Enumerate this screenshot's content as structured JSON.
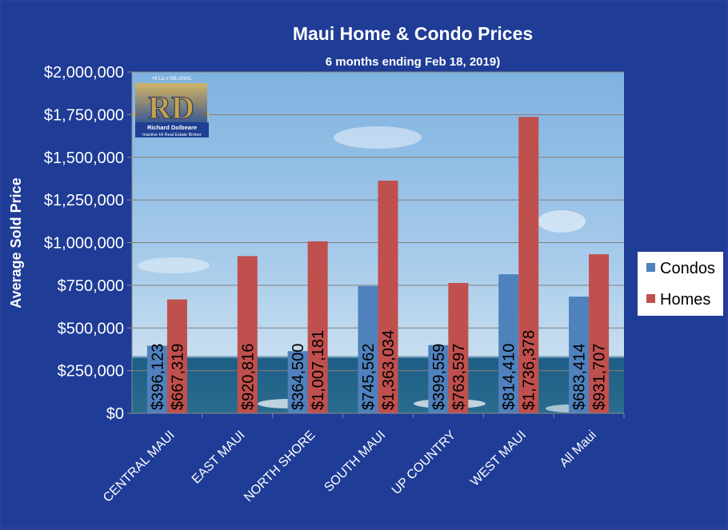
{
  "chart_data": {
    "type": "bar",
    "title": "Maui Home & Condo Prices",
    "subtitle": "6 months  ending Feb 18, 2019)",
    "xlabel": "",
    "ylabel": "Average Sold Price",
    "ylim": [
      0,
      2000000
    ],
    "yticks": [
      "$0",
      "$250,000",
      "$500,000",
      "$750,000",
      "$1,000,000",
      "$1,250,000",
      "$1,500,000",
      "$1,750,000",
      "$2,000,000"
    ],
    "grid": true,
    "legend_position": "right",
    "categories": [
      "CENTRAL MAUI",
      "EAST MAUI",
      "NORTH SHORE",
      "SOUTH MAUI",
      "UP COUNTRY",
      "WEST MAUI",
      "All Maui"
    ],
    "series": [
      {
        "name": "Condos",
        "color": "#4f81bd",
        "values": [
          396123,
          null,
          364500,
          745562,
          399559,
          814410,
          683414
        ],
        "labels": [
          "$396,123",
          "",
          "$364,500",
          "$745,562",
          "$399,559",
          "$814,410",
          "$683,414"
        ]
      },
      {
        "name": "Homes",
        "color": "#c0504d",
        "values": [
          667319,
          920816,
          1007181,
          1363034,
          763597,
          1736378,
          931707
        ],
        "labels": [
          "$667,319",
          "$920,816",
          "$1,007,181",
          "$1,363,034",
          "$763,597",
          "$1,736,378",
          "$931,707"
        ]
      }
    ]
  },
  "logo": {
    "initials": "RD",
    "name": "Richard Dolbeare",
    "tagline": "Inactive HI Real Estate Broker",
    "license": "HI Lic # RB-20941"
  }
}
